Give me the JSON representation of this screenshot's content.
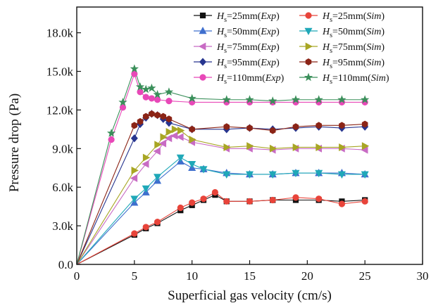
{
  "chart_data": {
    "type": "line",
    "xlabel": "Superficial gas velocity (cm/s)",
    "ylabel": "Pressure drop (Pa)",
    "xlim": [
      0,
      30
    ],
    "ylim": [
      0,
      20000
    ],
    "xticks": [
      "0",
      "5",
      "10",
      "15",
      "20",
      "25",
      "30"
    ],
    "yticks": [
      "0.0",
      "3.0k",
      "6.0k",
      "9.0k",
      "12.0k",
      "15.0k",
      "18.0k"
    ],
    "grid": false,
    "legend": "top-right",
    "series": [
      {
        "name": "Hs=25mm(Exp)",
        "label_main": "H",
        "label_sub": "s",
        "label_rest": "=25mm(",
        "label_it": "Exp",
        "label_end": ")",
        "color": "#111111",
        "marker": "square",
        "x": [
          0,
          5,
          6,
          7,
          9,
          10,
          11,
          12,
          13,
          15,
          17,
          19,
          21,
          23,
          25
        ],
        "y": [
          0,
          2300,
          2800,
          3200,
          4200,
          4600,
          5000,
          5400,
          4900,
          4900,
          5000,
          5000,
          5000,
          4900,
          5000
        ]
      },
      {
        "name": "Hs=25mm(Sim)",
        "label_main": "H",
        "label_sub": "s",
        "label_rest": "=25mm(",
        "label_it": "Sim",
        "label_end": ")",
        "color": "#e8443a",
        "marker": "circle",
        "x": [
          0,
          5,
          6,
          7,
          9,
          10,
          11,
          12,
          13,
          15,
          17,
          19,
          21,
          23,
          25
        ],
        "y": [
          0,
          2400,
          2900,
          3300,
          4400,
          4800,
          5100,
          5600,
          4900,
          4900,
          5000,
          5200,
          5100,
          4700,
          4900
        ]
      },
      {
        "name": "Hs=50mm(Exp)",
        "label_main": "H",
        "label_sub": "s",
        "label_rest": "=50mm(",
        "label_it": "Exp",
        "label_end": ")",
        "color": "#3f6fce",
        "marker": "triangle-up",
        "x": [
          0,
          5,
          6,
          7,
          9,
          10,
          11,
          13,
          15,
          17,
          19,
          21,
          23,
          25
        ],
        "y": [
          0,
          4800,
          5600,
          6500,
          8000,
          7500,
          7400,
          7100,
          7000,
          7000,
          7100,
          7100,
          7100,
          7000
        ]
      },
      {
        "name": "Hs=50mm(Sim)",
        "label_main": "H",
        "label_sub": "s",
        "label_rest": "=50mm(",
        "label_it": "Sim",
        "label_end": ")",
        "color": "#1fa8b8",
        "marker": "triangle-down",
        "x": [
          0,
          5,
          6,
          7,
          9,
          10,
          11,
          13,
          15,
          17,
          19,
          21,
          23,
          25
        ],
        "y": [
          0,
          5100,
          5900,
          6800,
          8300,
          7800,
          7400,
          7000,
          7000,
          7000,
          7100,
          7100,
          7000,
          7000
        ]
      },
      {
        "name": "Hs=75mm(Exp)",
        "label_main": "H",
        "label_sub": "s",
        "label_rest": "=75mm(",
        "label_it": "Exp",
        "label_end": ")",
        "color": "#c86bc4",
        "marker": "triangle-left",
        "x": [
          0,
          5,
          6,
          7,
          7.5,
          8,
          8.5,
          9,
          10,
          13,
          15,
          17,
          19,
          21,
          23,
          25
        ],
        "y": [
          0,
          6700,
          7800,
          8800,
          9400,
          9800,
          10000,
          9900,
          9500,
          9000,
          9000,
          8900,
          9000,
          9000,
          9000,
          8900
        ]
      },
      {
        "name": "Hs=75mm(Sim)",
        "label_main": "H",
        "label_sub": "s",
        "label_rest": "=75mm(",
        "label_it": "Sim",
        "label_end": ")",
        "color": "#a8a624",
        "marker": "triangle-right",
        "x": [
          0,
          5,
          6,
          7,
          7.5,
          8,
          8.5,
          9,
          10,
          13,
          15,
          17,
          19,
          21,
          23,
          25
        ],
        "y": [
          0,
          7300,
          8300,
          9300,
          9900,
          10300,
          10500,
          10400,
          9700,
          9100,
          9200,
          9000,
          9100,
          9100,
          9100,
          9200
        ]
      },
      {
        "name": "Hs=95mm(Exp)",
        "label_main": "H",
        "label_sub": "s",
        "label_rest": "=95mm(",
        "label_it": "Exp",
        "label_end": ")",
        "color": "#27358f",
        "marker": "diamond",
        "x": [
          0,
          5,
          5.5,
          6,
          6.5,
          7,
          7.5,
          8,
          10,
          13,
          15,
          17,
          19,
          21,
          23,
          25
        ],
        "y": [
          0,
          9800,
          10900,
          11400,
          11700,
          11600,
          11300,
          11000,
          10500,
          10500,
          10600,
          10500,
          10600,
          10700,
          10600,
          10700
        ]
      },
      {
        "name": "Hs=95mm(Sim)",
        "label_main": "H",
        "label_sub": "s",
        "label_rest": "=95mm(",
        "label_it": "Sim",
        "label_end": ")",
        "color": "#8b2416",
        "marker": "hexagon",
        "x": [
          0,
          5,
          5.5,
          6,
          6.5,
          7,
          7.5,
          8,
          10,
          13,
          15,
          17,
          19,
          21,
          23,
          25
        ],
        "y": [
          0,
          10800,
          11100,
          11500,
          11700,
          11600,
          11500,
          11300,
          10500,
          10700,
          10600,
          10400,
          10700,
          10800,
          10800,
          10900
        ]
      },
      {
        "name": "Hs=110mm(Exp)",
        "label_main": "H",
        "label_sub": "s",
        "label_rest": "=110mm(",
        "label_it": "Exp",
        "label_end": ")",
        "color": "#e848b8",
        "marker": "circle",
        "x": [
          0,
          3,
          4,
          5,
          5.5,
          6,
          6.5,
          7,
          8,
          10,
          13,
          15,
          17,
          19,
          21,
          23,
          25
        ],
        "y": [
          0,
          9700,
          12200,
          14800,
          13400,
          13000,
          12900,
          12800,
          12700,
          12600,
          12600,
          12600,
          12600,
          12600,
          12600,
          12600,
          12600
        ]
      },
      {
        "name": "Hs=110mm(Sim)",
        "label_main": "H",
        "label_sub": "s",
        "label_rest": "=110mm(",
        "label_it": "Sim",
        "label_end": ")",
        "color": "#3a8f5a",
        "marker": "star",
        "x": [
          0,
          3,
          4,
          5,
          5.5,
          6,
          6.5,
          7,
          8,
          10,
          13,
          15,
          17,
          19,
          21,
          23,
          25
        ],
        "y": [
          0,
          10200,
          12600,
          15200,
          13800,
          13600,
          13700,
          13200,
          13400,
          12900,
          12800,
          12800,
          12700,
          12800,
          12800,
          12800,
          12800
        ]
      }
    ]
  }
}
